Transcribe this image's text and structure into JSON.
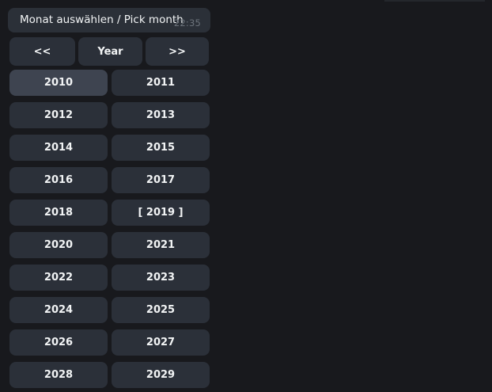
{
  "colors": {
    "background": "#18191d",
    "bubble_background": "#2b3038",
    "button_background": "#2b3039",
    "button_focused_background": "#3e4450",
    "text": "#f2f4f5",
    "timestamp_text": "#6c737b"
  },
  "message": {
    "text": "Monat auswählen / Pick month",
    "timestamp": "22:35"
  },
  "keyboard": {
    "nav": {
      "prev_label": "<<",
      "year_label": "Year",
      "next_label": ">>"
    },
    "years": [
      "2010",
      "2011",
      "2012",
      "2013",
      "2014",
      "2015",
      "2016",
      "2017",
      "2018",
      "[ 2019 ]",
      "2020",
      "2021",
      "2022",
      "2023",
      "2024",
      "2025",
      "2026",
      "2027",
      "2028",
      "2029"
    ],
    "focused_year": "2010",
    "selected_year": "2019"
  }
}
